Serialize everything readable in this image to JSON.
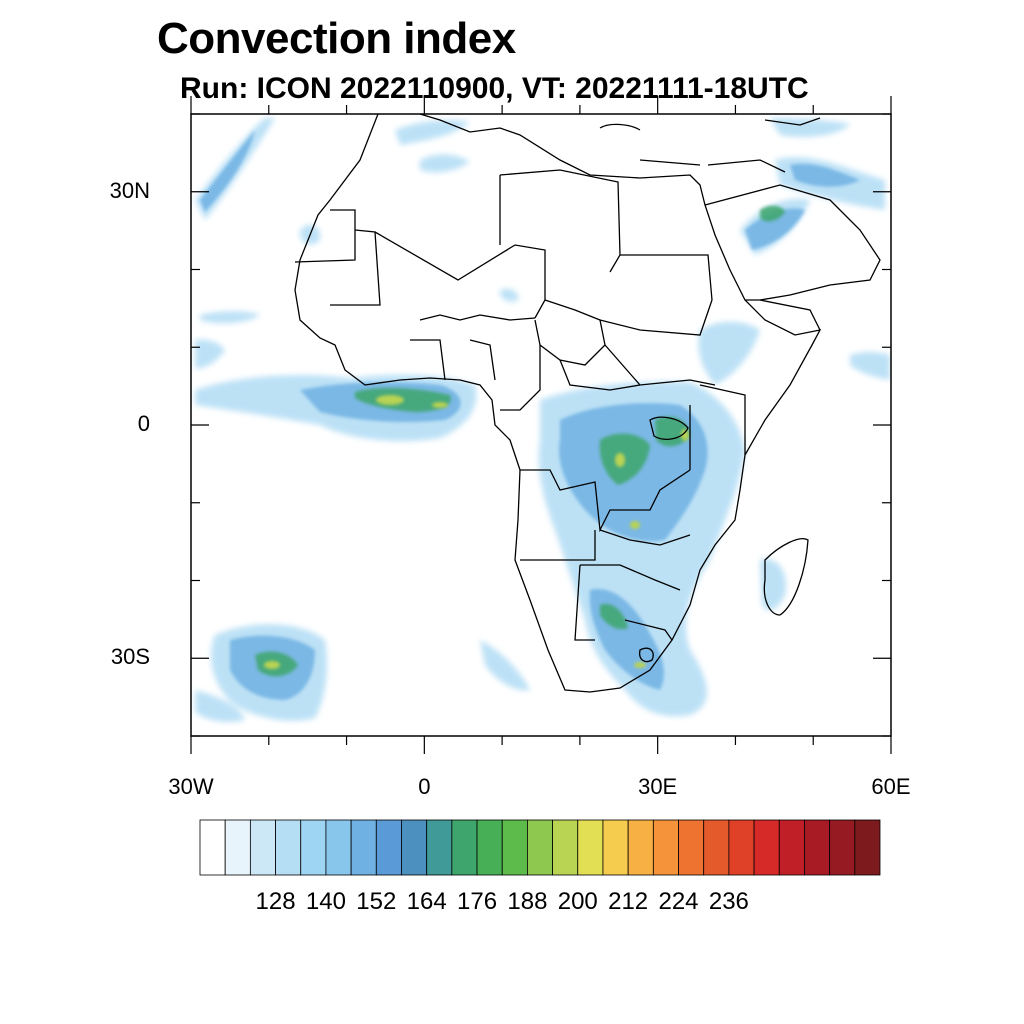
{
  "title": "Convection index",
  "subtitle": "Run: ICON 2022110900,  VT: 20221111-18UTC",
  "axes": {
    "y_ticks": [
      {
        "label": "30N",
        "lat": 30
      },
      {
        "label": "0",
        "lat": 0
      },
      {
        "label": "30S",
        "lat": -30
      }
    ],
    "x_ticks": [
      {
        "label": "30W",
        "lon": -30
      },
      {
        "label": "0",
        "lon": 0
      },
      {
        "label": "30E",
        "lon": 30
      },
      {
        "label": "60E",
        "lon": 60
      }
    ],
    "lon_range": [
      -30,
      60
    ],
    "lat_range": [
      -40,
      40
    ]
  },
  "colorbar": {
    "labels": [
      "128",
      "140",
      "152",
      "164",
      "176",
      "188",
      "200",
      "212",
      "224",
      "236"
    ],
    "colors": [
      "#ffffff",
      "#e8f4fb",
      "#cce8f6",
      "#b5def5",
      "#9ed5f3",
      "#88c6ec",
      "#70b1e3",
      "#5a9ad6",
      "#4c90c0",
      "#3f9a98",
      "#3ea66c",
      "#47b056",
      "#5dbb4c",
      "#8fc84e",
      "#b9d353",
      "#e3df55",
      "#f6cc4e",
      "#f7b043",
      "#f5933a",
      "#ee7330",
      "#e55a2b",
      "#df4128",
      "#d52a27",
      "#c11f27",
      "#a91b24",
      "#951a21",
      "#7d1a1d"
    ]
  },
  "colors": {
    "light_blue": "#9ed5f3",
    "mid_blue": "#5a9ad6",
    "teal": "#3f9a98",
    "green": "#47b056",
    "yellow_green": "#b9d353"
  }
}
